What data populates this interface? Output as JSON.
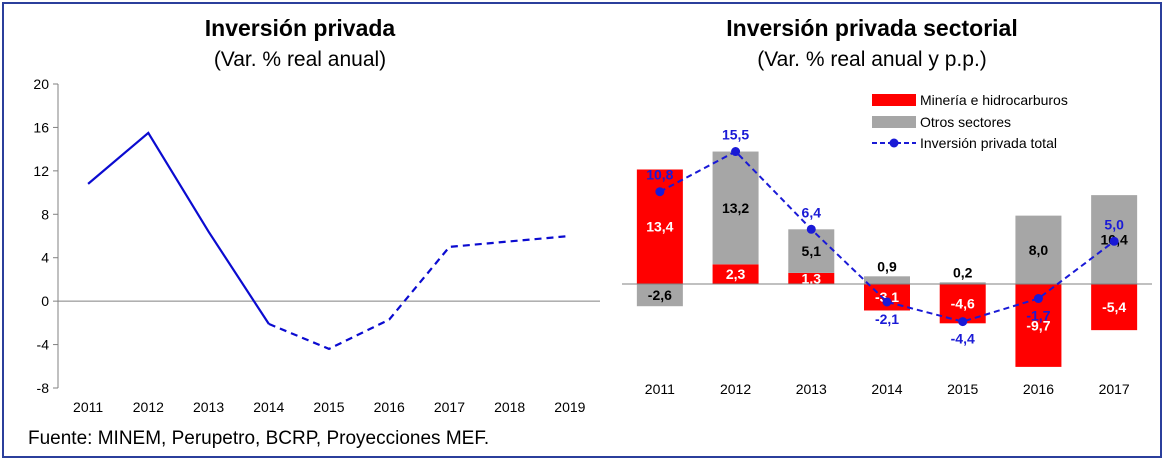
{
  "source": "Fuente: MINEM, Perupetro, BCRP, Proyecciones MEF.",
  "colors": {
    "frame": "#2b3f9c",
    "line": "#0b0bd0",
    "line_total": "#1a1ad6",
    "mining": "#ff0000",
    "others": "#a6a6a6"
  },
  "chart_data": [
    {
      "type": "line",
      "title": "Inversión privada",
      "subtitle": "(Var. % real anual)",
      "xlabel": "",
      "ylabel": "",
      "categories": [
        "2011",
        "2012",
        "2013",
        "2014",
        "2015",
        "2016",
        "2017",
        "2018",
        "2019"
      ],
      "yticks": [
        "20",
        "16",
        "12",
        "8",
        "4",
        "0",
        "-4",
        "-8"
      ],
      "ylim": [
        -8,
        20
      ],
      "series": [
        {
          "values": [
            10.8,
            15.5,
            6.4,
            -2.1,
            -4.4,
            -1.7,
            5.0,
            5.5,
            6.0
          ],
          "solid_through_index": 3,
          "style": "solid then dashed (projections)"
        }
      ],
      "grid": false
    },
    {
      "type": "bar",
      "stacked": true,
      "title": "Inversión privada sectorial",
      "subtitle": "(Var. % real anual y p.p.)",
      "categories": [
        "2011",
        "2012",
        "2013",
        "2014",
        "2015",
        "2016",
        "2017"
      ],
      "ylim": [
        -11,
        22
      ],
      "series": [
        {
          "name": "Minería e hidrocarburos",
          "kind": "bar",
          "values": [
            13.4,
            2.3,
            1.3,
            -3.1,
            -4.6,
            -9.7,
            -5.4
          ],
          "labels": [
            "13,4",
            "2,3",
            "1,3",
            "-3,1",
            "-4,6",
            "-9,7",
            "-5,4"
          ]
        },
        {
          "name": "Otros sectores",
          "kind": "bar",
          "values": [
            -2.6,
            13.2,
            5.1,
            0.9,
            0.2,
            8.0,
            10.4
          ],
          "labels": [
            "-2,6",
            "13,2",
            "5,1",
            "0,9",
            "0,2",
            "8,0",
            "10,4"
          ]
        },
        {
          "name": "Inversión privada total",
          "kind": "line-dashed-markers",
          "values": [
            10.8,
            15.5,
            6.4,
            -2.1,
            -4.4,
            -1.7,
            5.0
          ],
          "labels": [
            "10,8",
            "15,5",
            "6,4",
            "-2,1",
            "-4,4",
            "-1,7",
            "5,0"
          ]
        }
      ],
      "legend_position": "top-right",
      "grid": false
    }
  ]
}
